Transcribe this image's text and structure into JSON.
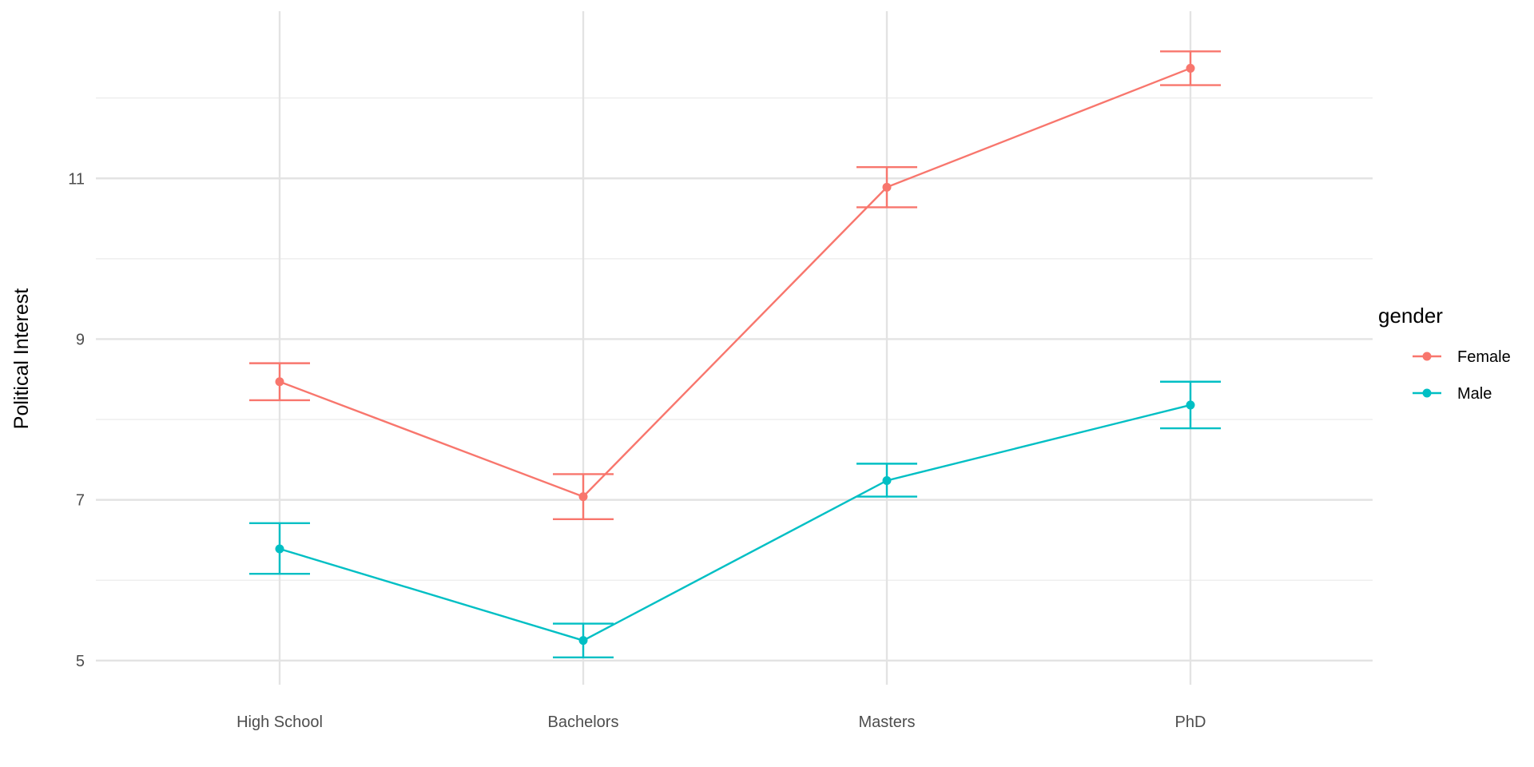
{
  "chart_data": {
    "type": "line",
    "title": "",
    "xlabel": "",
    "ylabel": "Political Interest",
    "categories": [
      "High School",
      "Bachelors",
      "Masters",
      "PhD"
    ],
    "ylim": [
      4.7,
      13.1
    ],
    "yticks": [
      5,
      7,
      9,
      11
    ],
    "minor_yticks": [
      6,
      8,
      10,
      12
    ],
    "grid": true,
    "error_bars": true,
    "legend": {
      "title": "gender",
      "position": "right"
    },
    "series": [
      {
        "name": "Female",
        "color": "#F8766D",
        "values": [
          8.47,
          7.04,
          10.89,
          12.37
        ],
        "lower": [
          8.24,
          6.76,
          10.64,
          12.16
        ],
        "upper": [
          8.7,
          7.32,
          11.14,
          12.58
        ]
      },
      {
        "name": "Male",
        "color": "#00BFC4",
        "values": [
          6.39,
          5.25,
          7.24,
          8.18
        ],
        "lower": [
          6.08,
          5.04,
          7.04,
          7.89
        ],
        "upper": [
          6.71,
          5.46,
          7.45,
          8.47
        ]
      }
    ]
  }
}
